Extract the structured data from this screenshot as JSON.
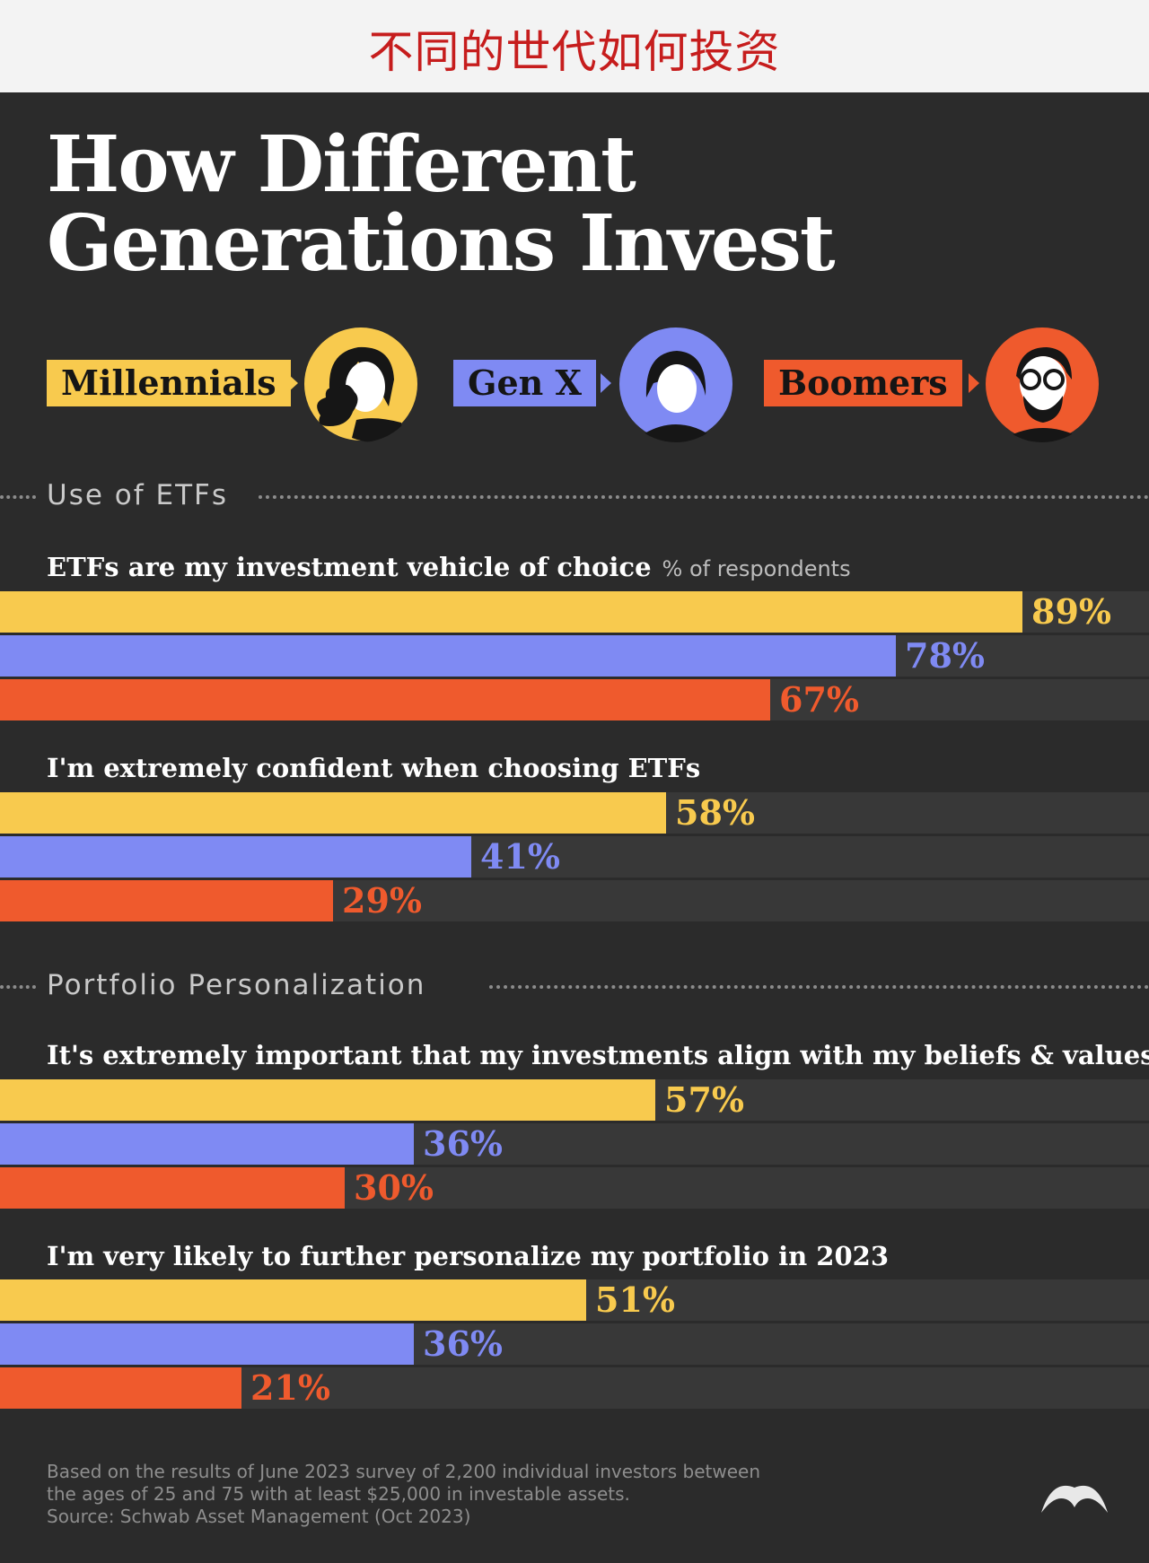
{
  "banner": {
    "cn_title": "不同的世代如何投资"
  },
  "title": {
    "line1": "How Different",
    "line2": "Generations Invest"
  },
  "legend": [
    {
      "label": "Millennials",
      "color": "#f8ca4e"
    },
    {
      "label": "Gen X",
      "color": "#7f8af3"
    },
    {
      "label": "Boomers",
      "color": "#ef5a2d"
    }
  ],
  "sections": [
    {
      "label": "Use of ETFs"
    },
    {
      "label": "Portfolio Personalization"
    }
  ],
  "footnote": {
    "line1": "Based on the results of June 2023 survey of 2,200 individual investors between",
    "line2": "the ages of 25 and 75 with at least $25,000 in investable assets.",
    "line3": "Source: Schwab Asset Management (Oct 2023)"
  },
  "chart_data": {
    "type": "bar",
    "orientation": "horizontal",
    "unit": "% of respondents",
    "series_names": [
      "Millennials",
      "Gen X",
      "Boomers"
    ],
    "questions": [
      {
        "section": "Use of ETFs",
        "question": "ETFs are my investment vehicle of choice",
        "values": [
          89,
          78,
          67
        ],
        "labels": [
          "89%",
          "78%",
          "67%"
        ]
      },
      {
        "section": "Use of ETFs",
        "question": "I'm extremely confident when choosing ETFs",
        "values": [
          58,
          41,
          29
        ],
        "labels": [
          "58%",
          "41%",
          "29%"
        ]
      },
      {
        "section": "Portfolio Personalization",
        "question": "It's extremely important that my investments align with my beliefs & values",
        "values": [
          57,
          36,
          30
        ],
        "labels": [
          "57%",
          "36%",
          "30%"
        ]
      },
      {
        "section": "Portfolio Personalization",
        "question": "I'm very likely to further personalize my portfolio in 2023",
        "values": [
          51,
          36,
          21
        ],
        "labels": [
          "51%",
          "36%",
          "21%"
        ]
      }
    ],
    "xlim": [
      0,
      100
    ],
    "grid": false,
    "legend_position": "top"
  }
}
